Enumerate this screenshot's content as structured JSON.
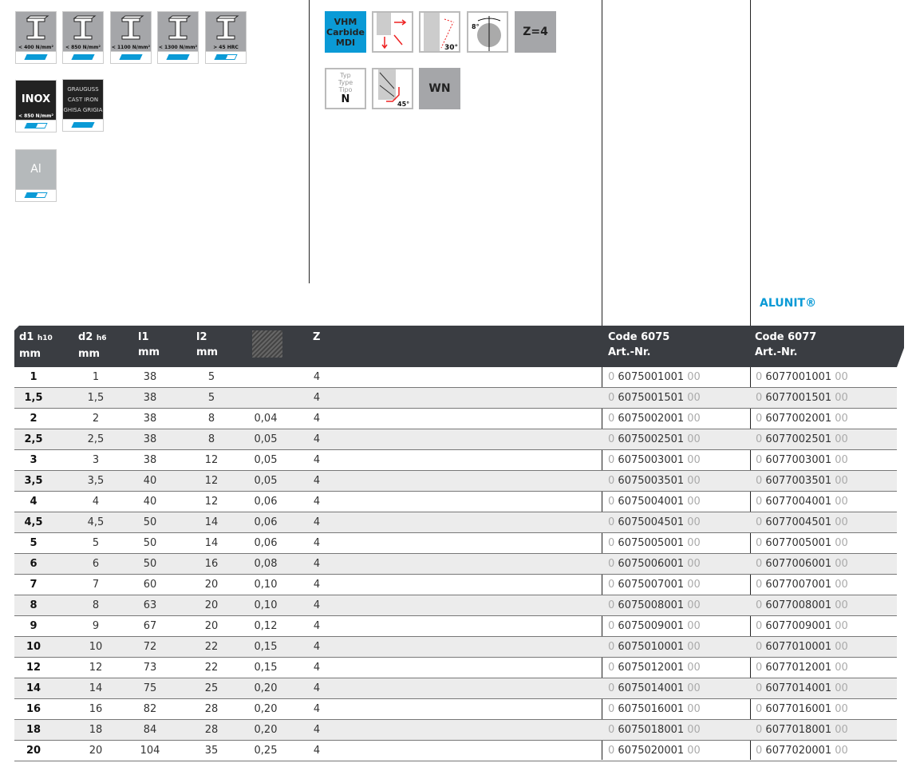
{
  "materials": [
    {
      "label": "< 400 N/mm²",
      "fill": "full"
    },
    {
      "label": "< 850 N/mm²",
      "fill": "full"
    },
    {
      "label": "< 1100 N/mm²",
      "fill": "full"
    },
    {
      "label": "< 1300 N/mm²",
      "fill": "full"
    },
    {
      "label": "> 45 HRC",
      "fill": "half"
    }
  ],
  "inox": {
    "title": "INOX",
    "label": "< 850 N/mm²",
    "fill": "half"
  },
  "castiron": {
    "lines": [
      "GRAUGUSS",
      "CAST IRON",
      "GHISA GRIGIA"
    ],
    "fill": "full"
  },
  "al": {
    "title": "Al",
    "fill": "half"
  },
  "features": {
    "carbide": [
      "VHM",
      "Carbide",
      "MDI"
    ],
    "angle30": "30°",
    "angle8": "8°",
    "z": "Z=4",
    "type": [
      "Typ",
      "Type",
      "Tipo"
    ],
    "type_value": "N",
    "angle45": "45°",
    "wn": "WN"
  },
  "brand": "ALUNIT®",
  "colors": {
    "accent": "#0a9ad6",
    "header": "#3a3d42",
    "icon_gray": "#a5a6a9"
  },
  "header": {
    "d1": "d1",
    "d1_tol": "h10",
    "d2": "d2",
    "d2_tol": "h6",
    "l1": "l1",
    "l2": "l2",
    "mm": "mm",
    "z": "Z",
    "code1": "Code 6075",
    "code2": "Code 6077",
    "art": "Art.-Nr.",
    "chamfer_icon": "corner-chamfer-icon"
  },
  "code_prefix": "0",
  "code_suffix": "00",
  "rows": [
    [
      "1",
      "1",
      "38",
      "5",
      "",
      "4",
      "6075001001",
      "6077001001"
    ],
    [
      "1,5",
      "1,5",
      "38",
      "5",
      "",
      "4",
      "6075001501",
      "6077001501"
    ],
    [
      "2",
      "2",
      "38",
      "8",
      "0,04",
      "4",
      "6075002001",
      "6077002001"
    ],
    [
      "2,5",
      "2,5",
      "38",
      "8",
      "0,05",
      "4",
      "6075002501",
      "6077002501"
    ],
    [
      "3",
      "3",
      "38",
      "12",
      "0,05",
      "4",
      "6075003001",
      "6077003001"
    ],
    [
      "3,5",
      "3,5",
      "40",
      "12",
      "0,05",
      "4",
      "6075003501",
      "6077003501"
    ],
    [
      "4",
      "4",
      "40",
      "12",
      "0,06",
      "4",
      "6075004001",
      "6077004001"
    ],
    [
      "4,5",
      "4,5",
      "50",
      "14",
      "0,06",
      "4",
      "6075004501",
      "6077004501"
    ],
    [
      "5",
      "5",
      "50",
      "14",
      "0,06",
      "4",
      "6075005001",
      "6077005001"
    ],
    [
      "6",
      "6",
      "50",
      "16",
      "0,08",
      "4",
      "6075006001",
      "6077006001"
    ],
    [
      "7",
      "7",
      "60",
      "20",
      "0,10",
      "4",
      "6075007001",
      "6077007001"
    ],
    [
      "8",
      "8",
      "63",
      "20",
      "0,10",
      "4",
      "6075008001",
      "6077008001"
    ],
    [
      "9",
      "9",
      "67",
      "20",
      "0,12",
      "4",
      "6075009001",
      "6077009001"
    ],
    [
      "10",
      "10",
      "72",
      "22",
      "0,15",
      "4",
      "6075010001",
      "6077010001"
    ],
    [
      "12",
      "12",
      "73",
      "22",
      "0,15",
      "4",
      "6075012001",
      "6077012001"
    ],
    [
      "14",
      "14",
      "75",
      "25",
      "0,20",
      "4",
      "6075014001",
      "6077014001"
    ],
    [
      "16",
      "16",
      "82",
      "28",
      "0,20",
      "4",
      "6075016001",
      "6077016001"
    ],
    [
      "18",
      "18",
      "84",
      "28",
      "0,20",
      "4",
      "6075018001",
      "6077018001"
    ],
    [
      "20",
      "20",
      "104",
      "35",
      "0,25",
      "4",
      "6075020001",
      "6077020001"
    ]
  ]
}
